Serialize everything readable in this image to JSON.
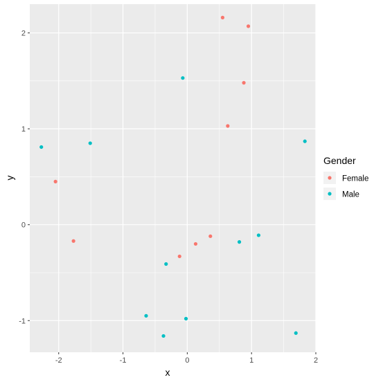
{
  "chart_data": {
    "type": "scatter",
    "xlabel": "x",
    "ylabel": "y",
    "xlim": [
      -2.45,
      2.0
    ],
    "ylim": [
      -1.33,
      2.3
    ],
    "xticks": [
      -2,
      -1,
      0,
      1,
      2
    ],
    "yticks": [
      -1,
      0,
      1,
      2
    ],
    "xtick_labels": [
      "-2",
      "-1",
      "0",
      "1",
      "2"
    ],
    "ytick_labels": [
      "-1",
      "0",
      "1",
      "2"
    ],
    "grid": true,
    "legend": {
      "title": "Gender",
      "position": "right",
      "entries": [
        "Female",
        "Male"
      ]
    },
    "colors": {
      "Female": "#F8766D",
      "Male": "#00BFC4",
      "panel": "#EBEBEB",
      "grid": "#FFFFFF"
    },
    "series": [
      {
        "name": "Female",
        "x": [
          0.55,
          0.95,
          0.88,
          0.63,
          -2.05,
          -1.77,
          -0.12,
          0.13,
          0.36
        ],
        "y": [
          2.16,
          2.07,
          1.48,
          1.03,
          0.45,
          -0.17,
          -0.33,
          -0.2,
          -0.12
        ]
      },
      {
        "name": "Male",
        "x": [
          -0.07,
          -2.27,
          -1.51,
          1.83,
          0.81,
          1.11,
          -0.33,
          -0.64,
          -0.02,
          -0.37,
          1.69
        ],
        "y": [
          1.53,
          0.81,
          0.85,
          0.87,
          -0.18,
          -0.11,
          -0.41,
          -0.95,
          -0.98,
          -1.16,
          -1.13
        ]
      }
    ]
  }
}
